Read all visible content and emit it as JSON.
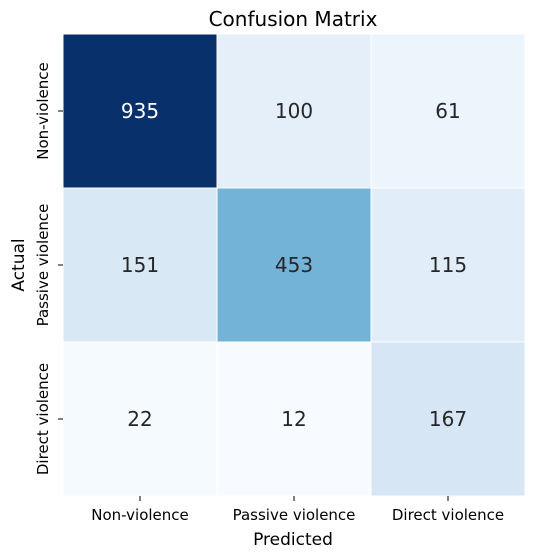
{
  "chart_data": {
    "type": "heatmap",
    "title": "Confusion Matrix",
    "xlabel": "Predicted",
    "ylabel": "Actual",
    "x_categories": [
      "Non-violence",
      "Passive violence",
      "Direct violence"
    ],
    "y_categories": [
      "Non-violence",
      "Passive violence",
      "Direct violence"
    ],
    "values": [
      [
        935,
        100,
        61
      ],
      [
        151,
        453,
        115
      ],
      [
        22,
        12,
        167
      ]
    ],
    "colormap": "Blues",
    "vmin": 12,
    "vmax": 935,
    "colorbar": false,
    "grid_line_color": "#ffffff",
    "annot_dark_color": "#262626",
    "annot_light_color": "#ffffff"
  }
}
